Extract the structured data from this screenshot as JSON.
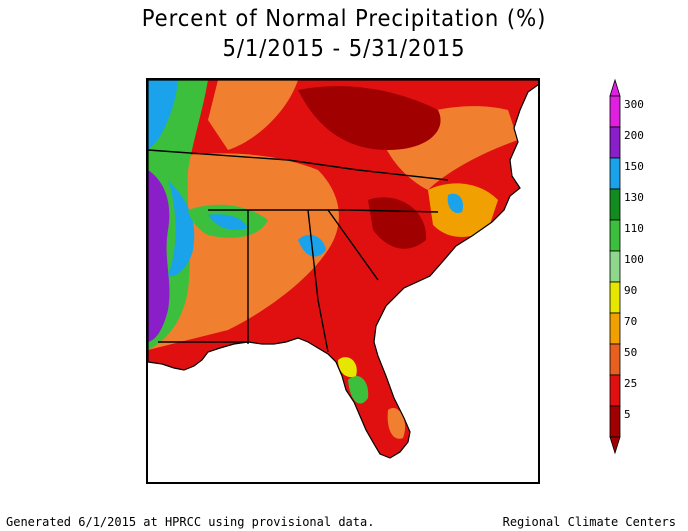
{
  "title": {
    "line1": "Percent of Normal Precipitation (%)",
    "line2": "5/1/2015 - 5/31/2015"
  },
  "legend": {
    "bins": [
      {
        "label": "300",
        "color": "#e020e0"
      },
      {
        "label": "200",
        "color": "#8a1ec8"
      },
      {
        "label": "150",
        "color": "#1aa3ea"
      },
      {
        "label": "130",
        "color": "#128c1e"
      },
      {
        "label": "110",
        "color": "#3cbf3c"
      },
      {
        "label": "100",
        "color": "#8fd78c"
      },
      {
        "label": "90",
        "color": "#e6e600"
      },
      {
        "label": "70",
        "color": "#f0a000"
      },
      {
        "label": "50",
        "color": "#e86020"
      },
      {
        "label": "25",
        "color": "#e01010"
      },
      {
        "label": "5",
        "color": "#a00000"
      }
    ]
  },
  "colors": {
    "land_dominant": "#e01010",
    "dark_red": "#a00000",
    "orange": "#f08030",
    "green": "#3cbf3c",
    "blue": "#1aa3ea",
    "purple": "#8a1ec8",
    "yellow": "#e6e600"
  },
  "footer": {
    "left": "Generated 6/1/2015 at HPRCC using provisional data.",
    "right": "Regional Climate Centers"
  }
}
